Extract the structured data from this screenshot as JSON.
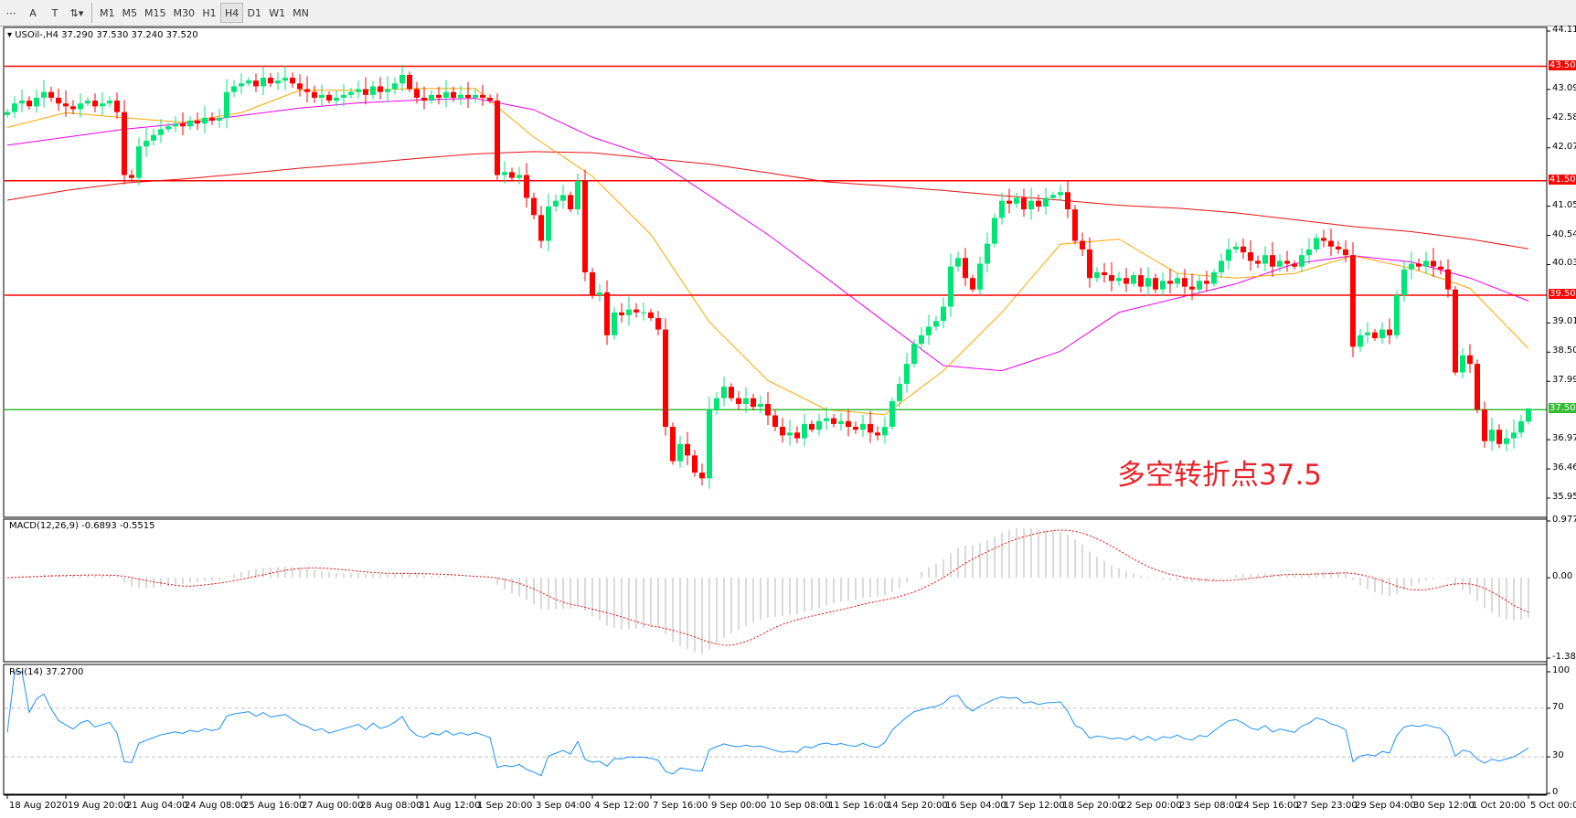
{
  "toolbar": {
    "tools": [
      {
        "name": "lines-icon",
        "glyph": "⋯"
      },
      {
        "name": "text-icon",
        "glyph": "A"
      },
      {
        "name": "text-label-icon",
        "glyph": "T"
      },
      {
        "name": "arrows-icon",
        "glyph": "⇅▾"
      }
    ],
    "timeframes": [
      "M1",
      "M5",
      "M15",
      "M30",
      "H1",
      "H4",
      "D1",
      "W1",
      "MN"
    ],
    "active_timeframe": "H4"
  },
  "main": {
    "symbol_info": "USOil-,H4  37.290 37.530 37.240 37.520",
    "price_ticks": [
      "44.115",
      "43.095",
      "42.585",
      "42.075",
      "41.055",
      "40.545",
      "40.035",
      "39.015",
      "38.505",
      "37.995",
      "36.975",
      "36.465",
      "35.955"
    ],
    "levels": [
      {
        "value": "43.500",
        "color": "#ff0000"
      },
      {
        "value": "41.500",
        "color": "#ff0000"
      },
      {
        "value": "39.500",
        "color": "#ff0000"
      },
      {
        "value": "37.500",
        "color": "#33bb33"
      }
    ],
    "annotation": "多空转折点37.5",
    "colors": {
      "bull": "#00e676",
      "bear": "#ff0000",
      "ma_fast": "#ffa500",
      "ma_mid": "#ee00ee",
      "ma_slow": "#ee1111"
    },
    "closes": [
      42.7,
      42.85,
      42.9,
      42.8,
      42.95,
      43.05,
      42.95,
      42.85,
      42.8,
      42.75,
      42.85,
      42.9,
      42.8,
      42.85,
      42.9,
      42.7,
      41.6,
      41.55,
      42.1,
      42.2,
      42.3,
      42.4,
      42.45,
      42.5,
      42.45,
      42.55,
      42.5,
      42.6,
      42.55,
      42.6,
      43.05,
      43.15,
      43.2,
      43.25,
      43.15,
      43.3,
      43.2,
      43.25,
      43.3,
      43.2,
      43.1,
      43.05,
      42.95,
      43.0,
      42.9,
      42.95,
      43.0,
      43.05,
      43.1,
      43.0,
      43.15,
      43.05,
      43.1,
      43.2,
      43.35,
      43.1,
      42.95,
      42.9,
      43.0,
      42.95,
      43.05,
      42.95,
      43.0,
      42.95,
      43.0,
      42.95,
      42.9,
      41.6,
      41.65,
      41.55,
      41.6,
      41.2,
      40.9,
      40.45,
      41.05,
      41.15,
      41.25,
      41.0,
      41.5,
      39.9,
      39.5,
      39.55,
      38.8,
      39.2,
      39.15,
      39.25,
      39.2,
      39.2,
      39.1,
      38.9,
      37.2,
      36.6,
      36.9,
      36.7,
      36.4,
      36.3,
      37.5,
      37.7,
      37.9,
      37.7,
      37.6,
      37.7,
      37.55,
      37.6,
      37.4,
      37.2,
      37.05,
      37.1,
      37.0,
      37.25,
      37.15,
      37.3,
      37.35,
      37.25,
      37.3,
      37.2,
      37.15,
      37.25,
      37.1,
      37.05,
      37.2,
      37.65,
      37.95,
      38.3,
      38.65,
      38.8,
      38.95,
      39.05,
      39.3,
      40.0,
      40.15,
      39.8,
      39.6,
      40.05,
      40.4,
      40.85,
      41.15,
      41.1,
      41.2,
      41.0,
      41.15,
      41.05,
      41.2,
      41.25,
      41.3,
      41.0,
      40.45,
      40.3,
      39.8,
      39.9,
      39.85,
      39.75,
      39.8,
      39.7,
      39.85,
      39.65,
      39.8,
      39.6,
      39.75,
      39.7,
      39.8,
      39.65,
      39.6,
      39.75,
      39.7,
      39.9,
      40.1,
      40.3,
      40.35,
      40.25,
      40.1,
      40.05,
      40.2,
      40.0,
      40.1,
      40.05,
      40.0,
      40.2,
      40.3,
      40.5,
      40.45,
      40.35,
      40.3,
      40.2,
      38.6,
      38.8,
      38.85,
      38.75,
      38.9,
      38.8,
      39.5,
      39.95,
      40.05,
      40.0,
      40.1,
      40.0,
      39.95,
      39.6,
      38.15,
      38.45,
      38.3,
      37.5,
      36.95,
      37.15,
      36.9,
      37.0,
      37.1,
      37.3,
      37.52
    ],
    "last_bar": {
      "open": 37.29,
      "high": 37.53,
      "low": 37.24,
      "close": 37.52
    },
    "ma_fast": [
      42.43,
      42.69,
      42.6,
      42.52,
      42.69,
      43.08,
      43.08,
      43.11,
      43.11,
      42.26,
      41.58,
      40.56,
      39.03,
      38.01,
      37.5,
      37.41,
      38.18,
      39.2,
      40.39,
      40.48,
      39.88,
      39.8,
      39.88,
      40.19,
      39.97,
      39.62,
      38.57
    ],
    "ma_mid": [
      42.12,
      42.26,
      42.4,
      42.5,
      42.64,
      42.77,
      42.86,
      42.91,
      42.94,
      42.74,
      42.26,
      41.92,
      41.24,
      40.56,
      39.8,
      39.03,
      38.27,
      38.18,
      38.52,
      39.2,
      39.45,
      39.7,
      40.05,
      40.19,
      40.08,
      39.8,
      39.4
    ],
    "ma_slow": [
      41.16,
      41.33,
      41.46,
      41.53,
      41.62,
      41.72,
      41.8,
      41.89,
      41.97,
      42.01,
      41.99,
      41.89,
      41.79,
      41.64,
      41.48,
      41.41,
      41.33,
      41.24,
      41.16,
      41.07,
      41.02,
      40.94,
      40.82,
      40.7,
      40.61,
      40.48,
      40.31
    ]
  },
  "macd": {
    "label": "MACD(12,26,9) -0.6893 -0.5515",
    "max": "0.9779",
    "zero": "0.00",
    "min": "-1.382",
    "colors": {
      "hist": "#b4b4b4",
      "signal": "#ff0000"
    }
  },
  "rsi": {
    "label": "RSI(14) 37.2700",
    "ticks": [
      "100",
      "70",
      "30",
      "0"
    ],
    "levels": [
      70,
      30
    ],
    "color": "#1e90ff"
  },
  "time_axis": [
    "18 Aug 2020",
    "19 Aug 20:00",
    "21 Aug 04:00",
    "24 Aug 08:00",
    "25 Aug 16:00",
    "27 Aug 00:00",
    "28 Aug 08:00",
    "31 Aug 12:00",
    "1 Sep 20:00",
    "3 Sep 04:00",
    "4 Sep 12:00",
    "7 Sep 16:00",
    "9 Sep 00:00",
    "10 Sep 08:00",
    "11 Sep 16:00",
    "14 Sep 20:00",
    "16 Sep 04:00",
    "17 Sep 12:00",
    "18 Sep 20:00",
    "22 Sep 00:00",
    "23 Sep 08:00",
    "24 Sep 16:00",
    "27 Sep 23:00",
    "29 Sep 04:00",
    "30 Sep 12:00",
    "1 Oct 20:00",
    "5 Oct 00:00"
  ]
}
